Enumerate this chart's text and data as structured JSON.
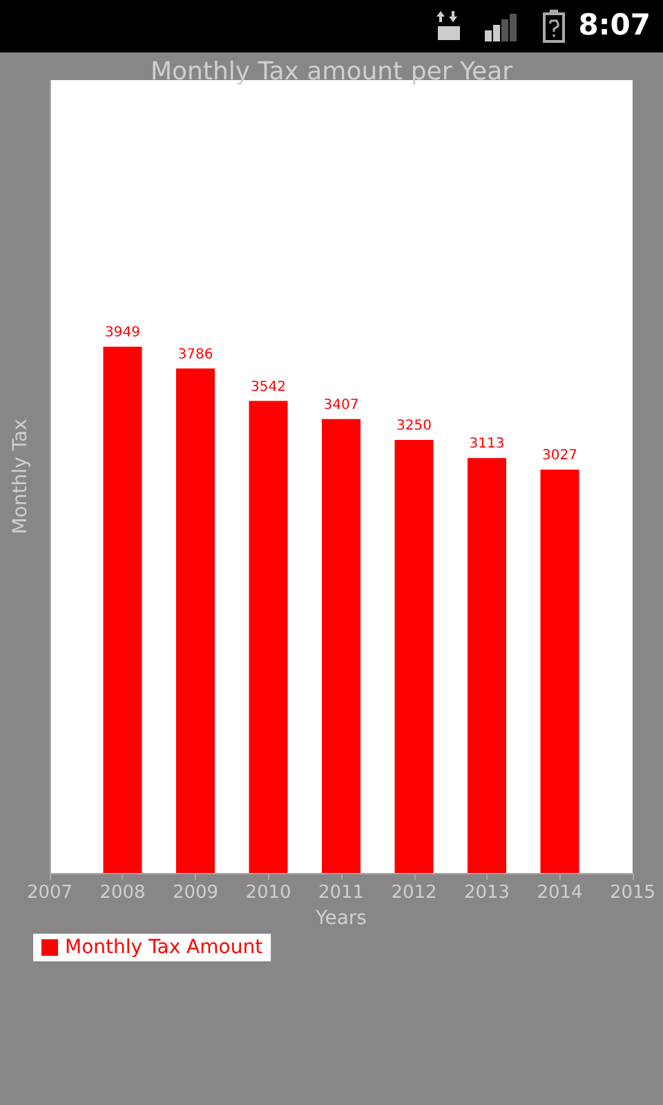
{
  "chart_data": {
    "type": "bar",
    "title": "Monthly Tax amount per Year",
    "xlabel": "Years",
    "ylabel": "Monthly Tax",
    "annotations": [
      "8:07"
    ],
    "x": [
      2008,
      2009,
      2010,
      2011,
      2012,
      2013,
      2014
    ],
    "series": [
      {
        "name": "Monthly Tax Amount",
        "color": "#ff0000",
        "values": [
          3949,
          3786,
          3542,
          3407,
          3250,
          3113,
          3027
        ]
      }
    ],
    "xlim": [
      2007,
      2015
    ],
    "xticks": [
      2007,
      2008,
      2009,
      2010,
      2011,
      2012,
      2013,
      2014,
      2015
    ],
    "ylim": [
      0,
      5950
    ],
    "tick_labels": "x",
    "data_labels": true,
    "grid": false,
    "legend": "bottom left"
  }
}
